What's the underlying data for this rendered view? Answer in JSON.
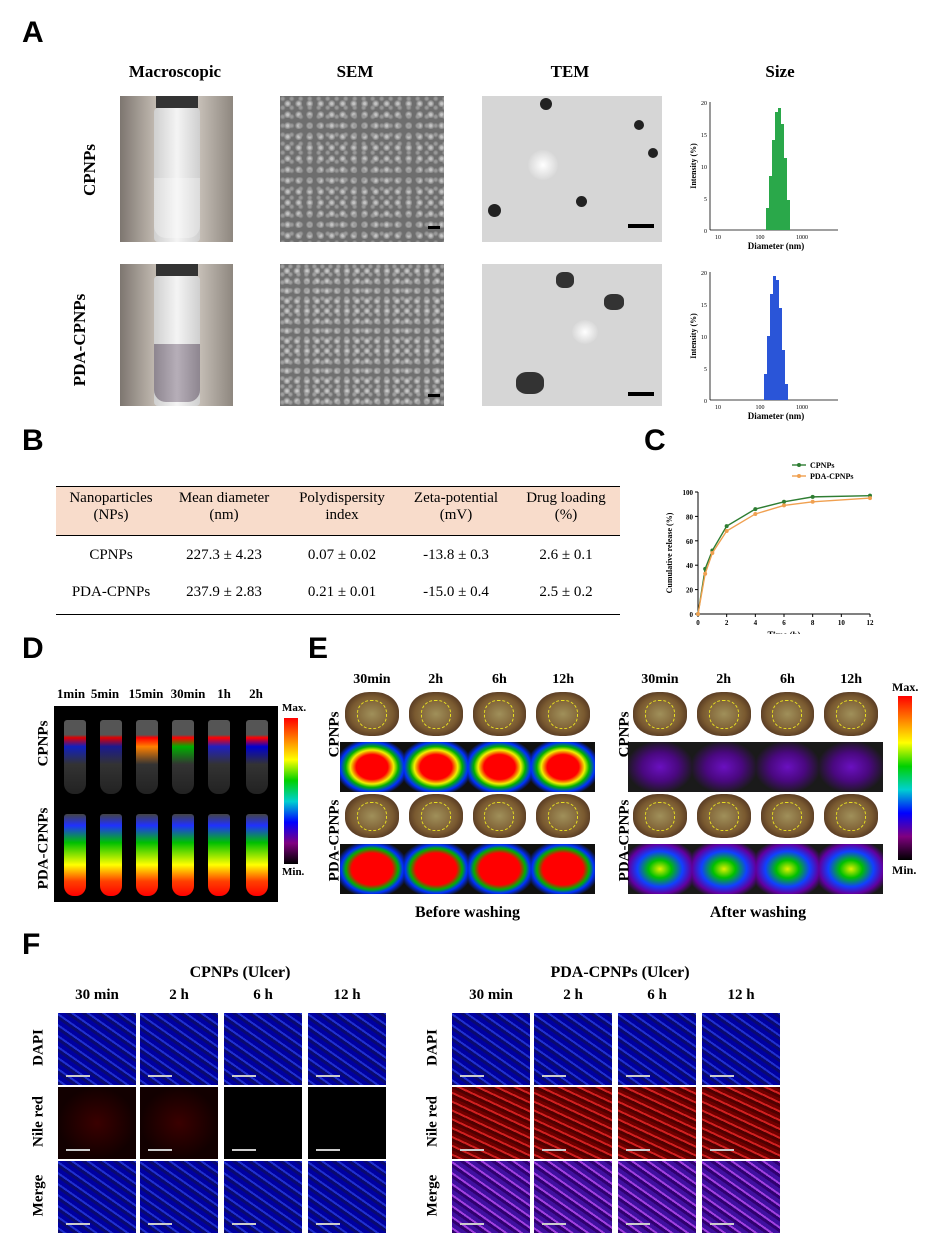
{
  "panels": {
    "a": "A",
    "b": "B",
    "c": "C",
    "d": "D",
    "e": "E",
    "f": "F"
  },
  "panel_a": {
    "columns": [
      "Macroscopic",
      "SEM",
      "TEM",
      "Size"
    ],
    "rows": [
      "CPNPs",
      "PDA-CPNPs"
    ],
    "size_chart": {
      "ylabel": "Intensity (%)",
      "xlabel": "Diameter (nm)",
      "yticks": [
        "0",
        "5",
        "10",
        "15",
        "20"
      ],
      "xticks": [
        "10",
        "100",
        "1000"
      ]
    }
  },
  "panel_b": {
    "header1": [
      "Nanoparticles",
      "Mean diameter",
      "Polydispersity",
      "Zeta-potential",
      "Drug loading"
    ],
    "header2": [
      "(NPs)",
      "(nm)",
      "index",
      "(mV)",
      "(%)"
    ],
    "rows": [
      [
        "CPNPs",
        "227.3 ± 4.23",
        "0.07 ± 0.02",
        "-13.8 ± 0.3",
        "2.6 ± 0.1"
      ],
      [
        "PDA-CPNPs",
        "237.9 ± 2.83",
        "0.21 ± 0.01",
        "-15.0 ± 0.4",
        "2.5 ± 0.2"
      ]
    ],
    "header_bg": "#f8dccb"
  },
  "chart_data": {
    "type": "line",
    "xlabel": "Time (h)",
    "ylabel": "Cumulative release (%)",
    "xlim": [
      0,
      12
    ],
    "ylim": [
      0,
      100
    ],
    "xticks": [
      "0",
      "2",
      "4",
      "6",
      "8",
      "10",
      "12"
    ],
    "yticks": [
      "0",
      "20",
      "40",
      "60",
      "80",
      "100"
    ],
    "legend": "top-right",
    "series": [
      {
        "name": "CPNPs",
        "color": "#2e7d32",
        "x": [
          0,
          0.5,
          1,
          2,
          4,
          6,
          8,
          12
        ],
        "y": [
          0,
          37,
          52,
          72,
          86,
          92,
          96,
          97
        ]
      },
      {
        "name": "PDA-CPNPs",
        "color": "#f0a050",
        "x": [
          0,
          0.5,
          1,
          2,
          4,
          6,
          8,
          12
        ],
        "y": [
          0,
          33,
          50,
          68,
          82,
          89,
          92,
          95
        ]
      }
    ]
  },
  "panel_d": {
    "times": [
      "1min",
      "5min",
      "15min",
      "30min",
      "1h",
      "2h"
    ],
    "rows": [
      "CPNPs",
      "PDA-CPNPs"
    ],
    "scale": {
      "max": "Max.",
      "min": "Min."
    }
  },
  "panel_e": {
    "times": [
      "30min",
      "2h",
      "6h",
      "12h"
    ],
    "rows": [
      "CPNPs",
      "PDA-CPNPs"
    ],
    "captions": [
      "Before washing",
      "After washing"
    ],
    "scale": {
      "max": "Max.",
      "min": "Min."
    }
  },
  "panel_f": {
    "groups": [
      "CPNPs (Ulcer)",
      "PDA-CPNPs (Ulcer)"
    ],
    "times": [
      "30 min",
      "2 h",
      "6 h",
      "12 h"
    ],
    "rows": [
      "DAPI",
      "Nile red",
      "Merge"
    ]
  }
}
